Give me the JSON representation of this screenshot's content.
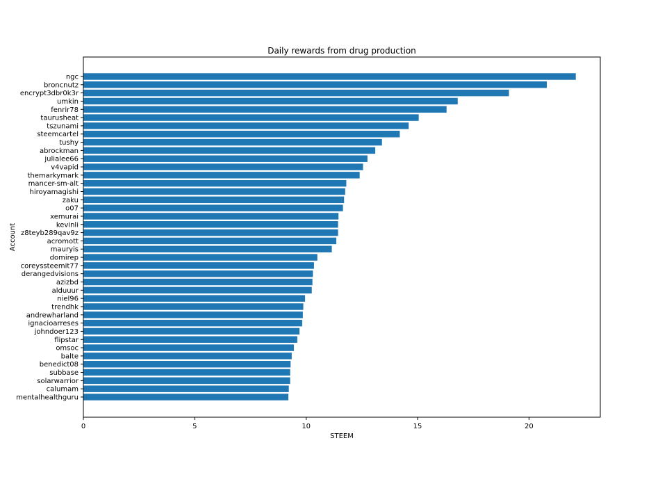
{
  "chart_data": {
    "type": "bar",
    "orientation": "horizontal",
    "title": "Daily rewards from drug production",
    "xlabel": "STEEM",
    "ylabel": "Account",
    "xlim": [
      0,
      23.2
    ],
    "xticks": [
      0,
      5,
      10,
      15,
      20
    ],
    "grid": false,
    "bar_color": "#1f77b4",
    "categories": [
      "ngc",
      "broncnutz",
      "encrypt3dbr0k3r",
      "umkin",
      "fenrir78",
      "taurusheat",
      "tszunami",
      "steemcartel",
      "tushy",
      "abrockman",
      "julialee66",
      "v4vapid",
      "themarkymark",
      "mancer-sm-alt",
      "hiroyamagishi",
      "zaku",
      "o07",
      "xemurai",
      "kevinli",
      "z8teyb289qav9z",
      "acromott",
      "mauryis",
      "domirep",
      "coreyssteemit77",
      "derangedvisions",
      "azizbd",
      "alduuur",
      "niel96",
      "trendhk",
      "andrewharland",
      "ignacioarreses",
      "johndoer123",
      "flipstar",
      "omsoc",
      "balte",
      "benedict08",
      "subbase",
      "solarwarrior",
      "calumam",
      "mentalhealthguru"
    ],
    "values": [
      22.1,
      20.8,
      19.1,
      16.8,
      16.3,
      15.05,
      14.6,
      14.2,
      13.4,
      13.1,
      12.75,
      12.55,
      12.4,
      11.8,
      11.75,
      11.7,
      11.65,
      11.45,
      11.43,
      11.43,
      11.35,
      11.15,
      10.5,
      10.35,
      10.3,
      10.28,
      10.25,
      9.95,
      9.87,
      9.85,
      9.82,
      9.7,
      9.6,
      9.45,
      9.35,
      9.3,
      9.28,
      9.28,
      9.22,
      9.2
    ]
  }
}
